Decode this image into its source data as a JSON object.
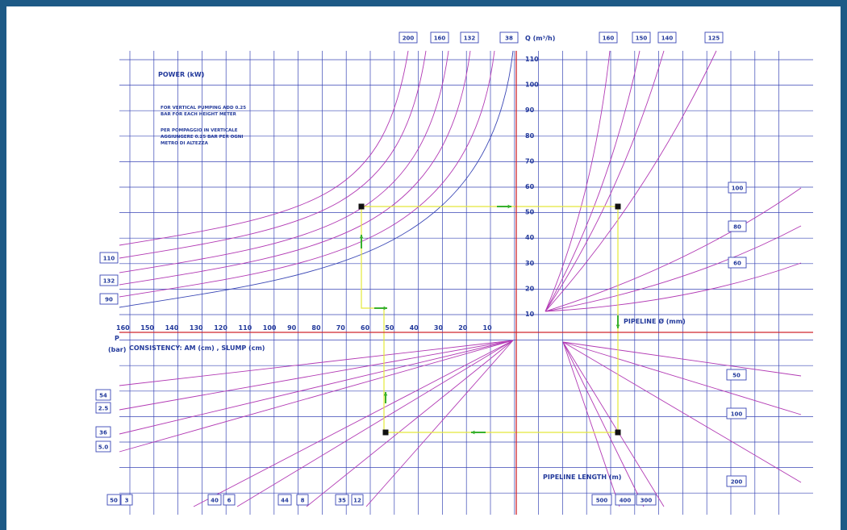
{
  "colors": {
    "frame": "#1d5a86",
    "grid": "#3a47b5",
    "curve": "#b23ab4",
    "guide": "#e4e83a",
    "arrow": "#39b12d",
    "axis_red": "#d0262e",
    "text": "#233a9b"
  },
  "texts": {
    "power_title": "POWER (kW)",
    "note_en_1": "FOR VERTICAL PUMPING ADD 0.25",
    "note_en_2": "BAR FOR EACH HEIGHT METER",
    "note_it_1": "PER POMPAGGIO IN VERTICALE",
    "note_it_2": "AGGIUNGERE 0.25 BAR PER OGNI",
    "note_it_3": "METRO DI ALTEZZA",
    "q_label": "Q (m³/h)",
    "pipeline_diam_label": "PIPELINE Ø (mm)",
    "pressure_label_top": "P",
    "pressure_label_bottom": "(bar)",
    "consistency_label": "CONSISTENCY: AM (cm) , SLUMP (cm)",
    "pipeline_length_label": "PIPELINE LENGTH (m)"
  },
  "q_axis": [
    "110",
    "100",
    "90",
    "80",
    "70",
    "60",
    "50",
    "40",
    "30",
    "20",
    "10"
  ],
  "pressure_axis": [
    "160",
    "150",
    "140",
    "130",
    "120",
    "110",
    "100",
    "90",
    "80",
    "70",
    "60",
    "50",
    "40",
    "30",
    "20",
    "10"
  ],
  "power_top_boxes": [
    "200",
    "160",
    "132",
    "38"
  ],
  "diameter_top_boxes": [
    "160",
    "150",
    "140",
    "125"
  ],
  "power_left_boxes": [
    "110",
    "132",
    "90"
  ],
  "diameter_right_boxes": [
    "100",
    "80",
    "60"
  ],
  "length_right_boxes": [
    "50",
    "100",
    "200"
  ],
  "pressure_left_boxes": [
    "54",
    "2.5",
    "36",
    "5.0"
  ],
  "consistency_bottom_boxes": [
    "50",
    "3",
    "40",
    "6",
    "44",
    "8",
    "35",
    "12"
  ],
  "length_bottom_boxes": [
    "500",
    "400",
    "300"
  ],
  "example": {
    "q": 50,
    "pressure": 70,
    "consistency": 60
  }
}
